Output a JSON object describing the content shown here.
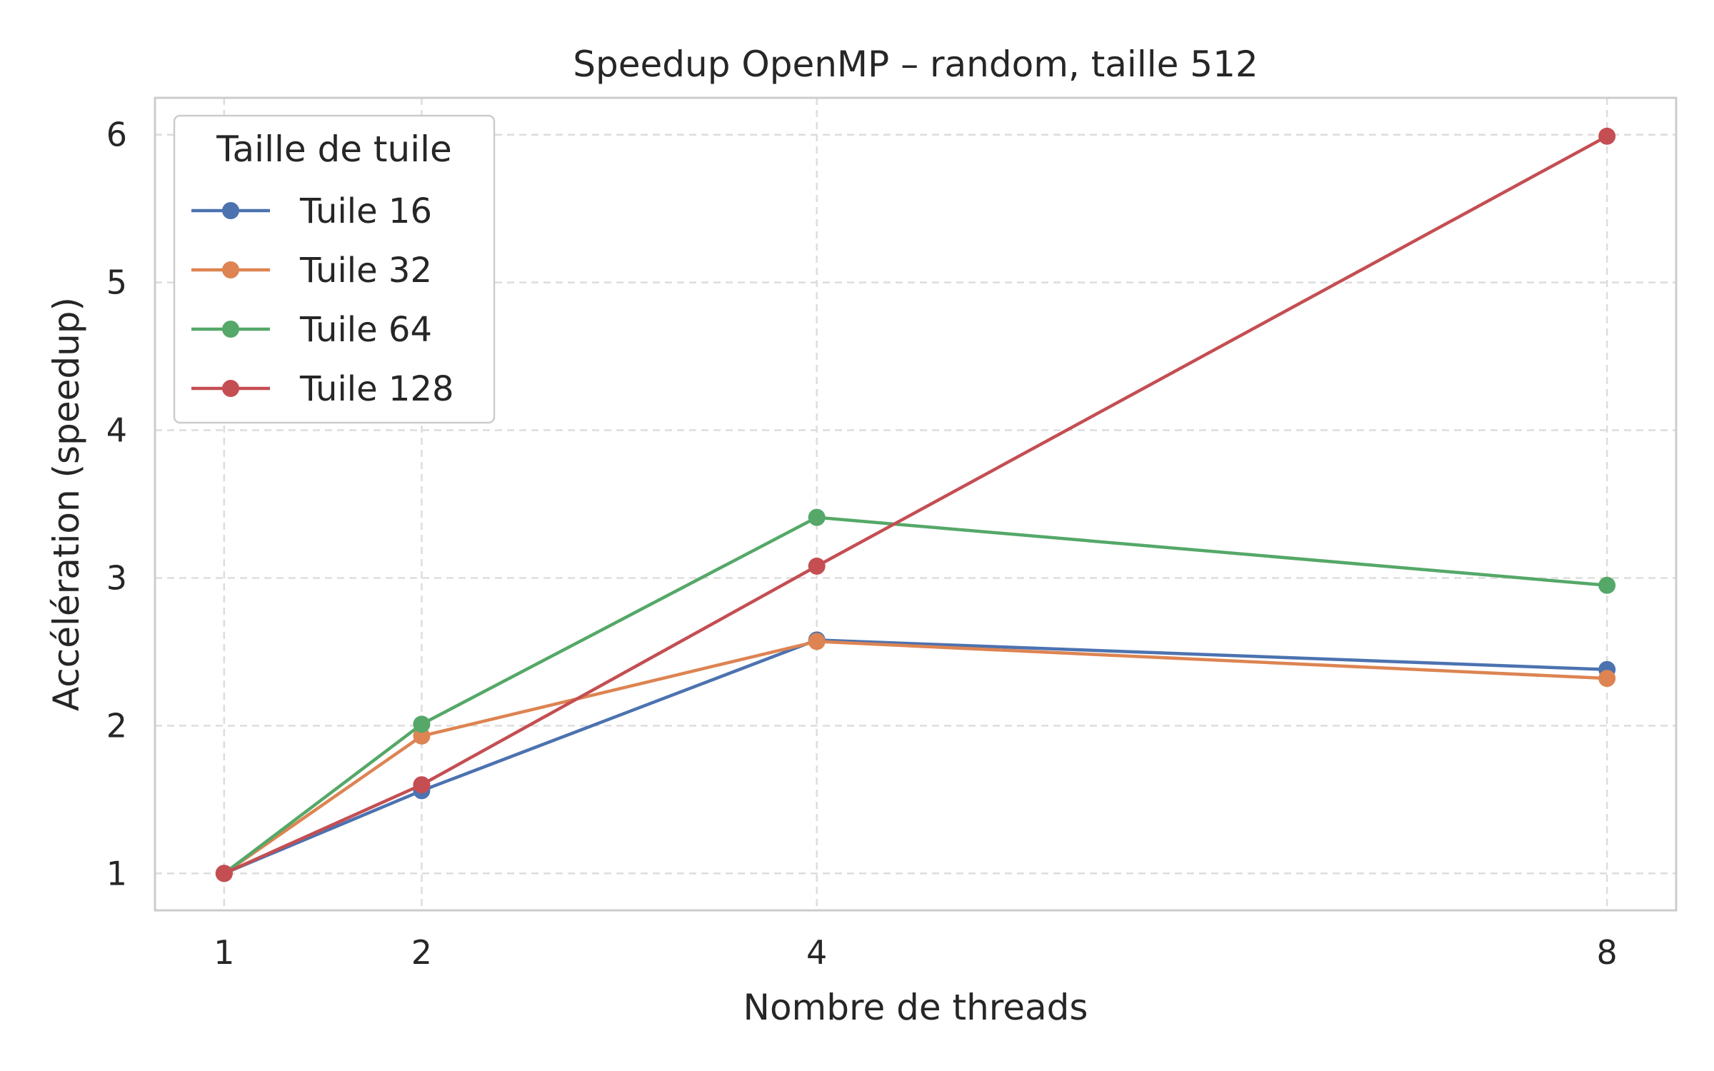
{
  "chart_data": {
    "type": "line",
    "title": "Speedup OpenMP – random, taille 512",
    "xlabel": "Nombre de threads",
    "ylabel": "Accélération (speedup)",
    "x": [
      1,
      2,
      4,
      8
    ],
    "x_ticks": [
      "1",
      "2",
      "4",
      "8"
    ],
    "y_ticks": [
      "1",
      "2",
      "3",
      "4",
      "5",
      "6"
    ],
    "xlim": [
      0.65,
      8.35
    ],
    "ylim": [
      0.75,
      6.25
    ],
    "grid": true,
    "legend_title": "Taille de tuile",
    "legend_position": "top-left",
    "series": [
      {
        "name": "Tuile 16",
        "color": "#4c72b0",
        "values": [
          1.0,
          1.56,
          2.58,
          2.38
        ]
      },
      {
        "name": "Tuile 32",
        "color": "#dd8452",
        "values": [
          1.0,
          1.93,
          2.57,
          2.32
        ]
      },
      {
        "name": "Tuile 64",
        "color": "#55a868",
        "values": [
          1.0,
          2.01,
          3.41,
          2.95
        ]
      },
      {
        "name": "Tuile 128",
        "color": "#c44e52",
        "values": [
          1.0,
          1.6,
          3.08,
          5.99
        ]
      }
    ]
  }
}
